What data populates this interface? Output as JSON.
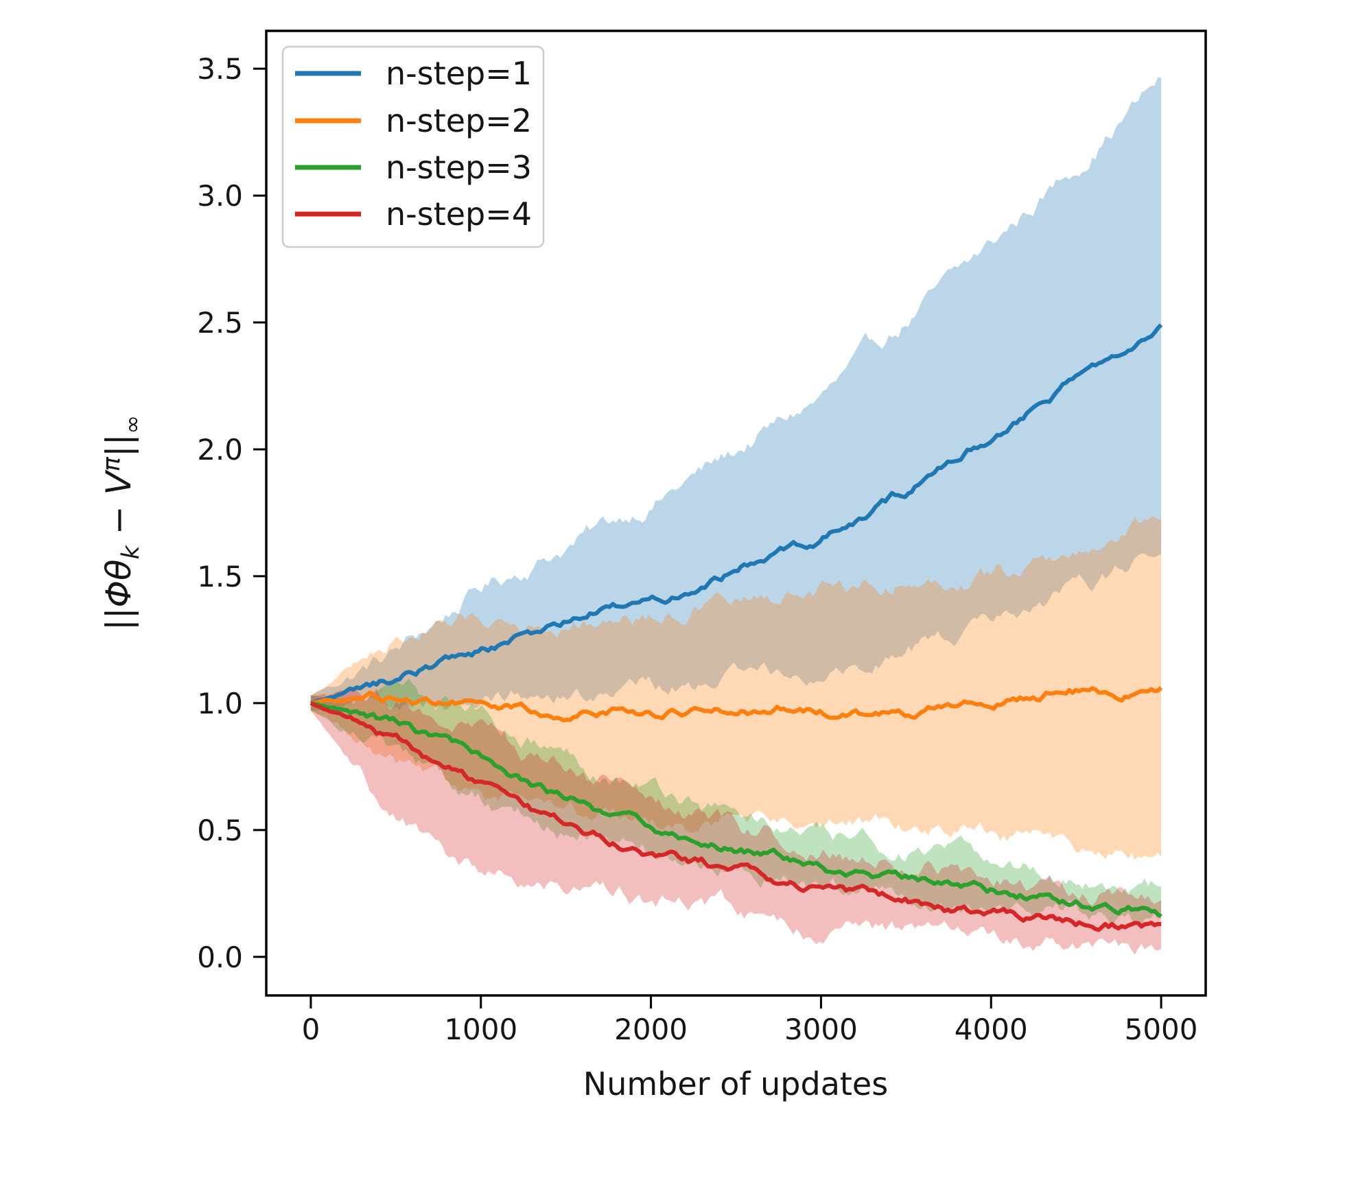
{
  "figure": {
    "background": "#ffffff",
    "text_color": "#151515",
    "spine_color": "#000000"
  },
  "legend": {
    "position": "upper left",
    "border_color": "#cccccc",
    "fill": "#ffffff",
    "entries": [
      {
        "label": "n-step=1",
        "color": "#1f77b4"
      },
      {
        "label": "n-step=2",
        "color": "#ff7f0e"
      },
      {
        "label": "n-step=3",
        "color": "#2ca02c"
      },
      {
        "label": "n-step=4",
        "color": "#d62728"
      }
    ]
  },
  "ylabel_parts": {
    "bar1": "||",
    "phitheta": "Φθ",
    "sub_k": "k",
    "minus": " − ",
    "v": "V",
    "sup_pi": "π",
    "bar2": "||",
    "sub_inf": "∞"
  },
  "chart_data": {
    "type": "line",
    "title": "",
    "xlabel": "Number of updates",
    "ylabel": "||Φθ_k − V^π||_∞",
    "xlim": [
      -262,
      5262
    ],
    "ylim": [
      -0.152,
      3.649
    ],
    "x_ticks": [
      0,
      1000,
      2000,
      3000,
      4000,
      5000
    ],
    "y_ticks": [
      0.0,
      0.5,
      1.0,
      1.5,
      2.0,
      2.5,
      3.0,
      3.5
    ],
    "grid": false,
    "legend_position": "upper left",
    "band_alpha": 0.3,
    "x": [
      0,
      250,
      500,
      750,
      1000,
      1250,
      1500,
      1750,
      2000,
      2250,
      2500,
      2750,
      3000,
      3250,
      3500,
      3750,
      4000,
      4250,
      4500,
      4750,
      5000
    ],
    "band_x": [
      0,
      500,
      1000,
      1500,
      2000,
      2500,
      3000,
      3500,
      4000,
      4500,
      5000
    ],
    "series": [
      {
        "name": "n-step=1",
        "color": "#1f77b4",
        "values": [
          1.0,
          1.05,
          1.1,
          1.16,
          1.21,
          1.26,
          1.32,
          1.37,
          1.4,
          1.46,
          1.53,
          1.59,
          1.65,
          1.73,
          1.83,
          1.94,
          2.05,
          2.16,
          2.27,
          2.39,
          2.52
        ],
        "band_high": [
          1.03,
          1.2,
          1.45,
          1.62,
          1.79,
          1.99,
          2.2,
          2.5,
          2.8,
          3.12,
          3.46
        ],
        "band_low": [
          0.97,
          0.99,
          1.01,
          1.03,
          1.06,
          1.1,
          1.14,
          1.22,
          1.3,
          1.43,
          1.58
        ]
      },
      {
        "name": "n-step=2",
        "color": "#ff7f0e",
        "values": [
          1.0,
          1.02,
          1.02,
          1.01,
          1.0,
          0.98,
          0.97,
          0.98,
          0.96,
          0.97,
          0.96,
          0.98,
          0.96,
          0.95,
          0.96,
          0.98,
          1.01,
          1.03,
          1.05,
          1.04,
          1.07
        ],
        "band_high": [
          1.03,
          1.26,
          1.33,
          1.33,
          1.35,
          1.39,
          1.45,
          1.48,
          1.51,
          1.58,
          1.75
        ],
        "band_low": [
          0.97,
          0.75,
          0.62,
          0.56,
          0.52,
          0.54,
          0.55,
          0.52,
          0.48,
          0.43,
          0.38
        ]
      },
      {
        "name": "n-step=3",
        "color": "#2ca02c",
        "values": [
          1.0,
          0.96,
          0.92,
          0.85,
          0.78,
          0.7,
          0.63,
          0.56,
          0.5,
          0.46,
          0.42,
          0.39,
          0.35,
          0.32,
          0.3,
          0.28,
          0.26,
          0.24,
          0.22,
          0.2,
          0.17
        ],
        "band_high": [
          1.03,
          1.04,
          0.97,
          0.8,
          0.67,
          0.56,
          0.47,
          0.42,
          0.38,
          0.32,
          0.27
        ],
        "band_low": [
          0.97,
          0.8,
          0.62,
          0.5,
          0.4,
          0.34,
          0.29,
          0.25,
          0.21,
          0.17,
          0.13
        ]
      },
      {
        "name": "n-step=4",
        "color": "#d62728",
        "values": [
          1.0,
          0.93,
          0.85,
          0.76,
          0.67,
          0.58,
          0.52,
          0.47,
          0.42,
          0.38,
          0.34,
          0.3,
          0.27,
          0.24,
          0.22,
          0.19,
          0.17,
          0.16,
          0.14,
          0.13,
          0.11
        ],
        "band_high": [
          1.03,
          1.0,
          0.9,
          0.73,
          0.61,
          0.5,
          0.43,
          0.37,
          0.31,
          0.26,
          0.21
        ],
        "band_low": [
          0.97,
          0.55,
          0.33,
          0.27,
          0.22,
          0.18,
          0.11,
          0.08,
          0.05,
          0.03,
          0.01
        ]
      }
    ]
  }
}
